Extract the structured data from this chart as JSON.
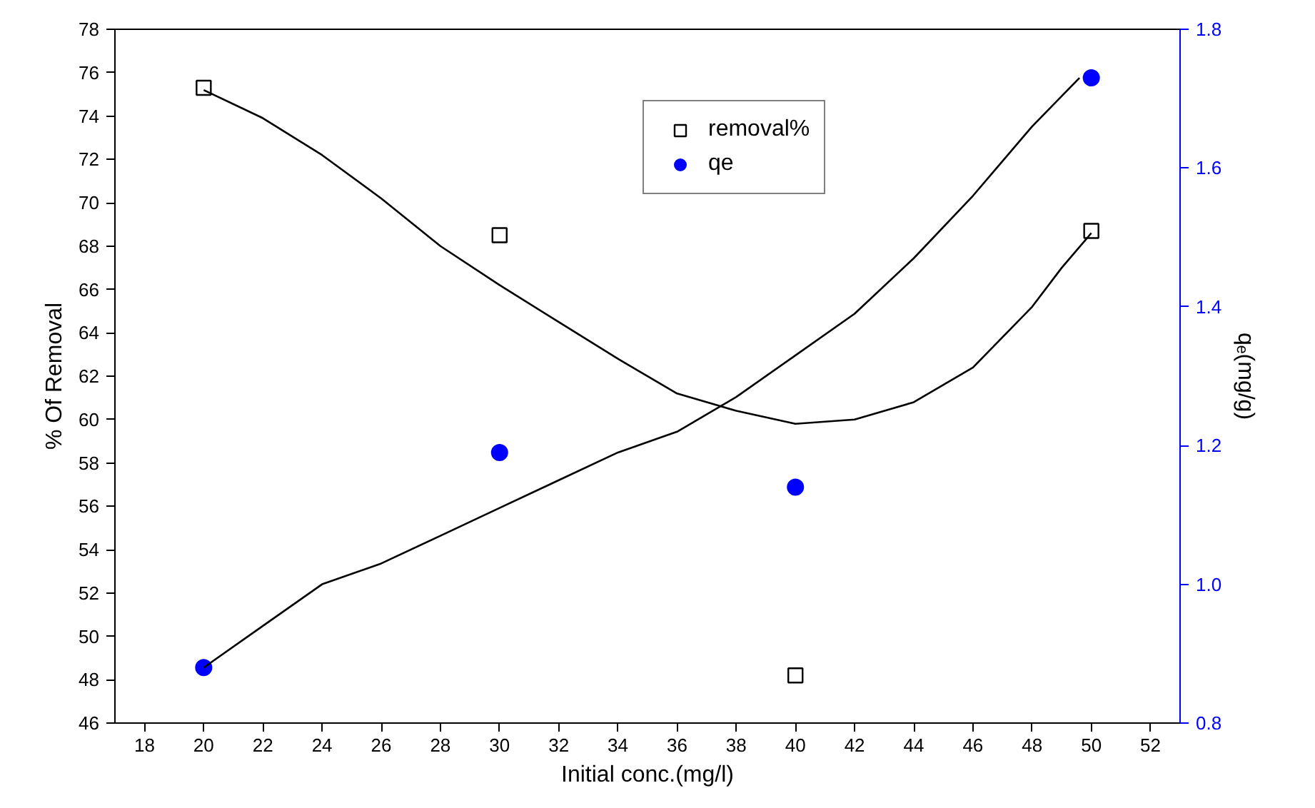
{
  "chart_data": {
    "type": "scatter",
    "xlabel": "Initial conc.(mg/l)",
    "ylabel": "% Of Removal",
    "y2label": "qₑ(mg/g)",
    "x": [
      20,
      30,
      40,
      50
    ],
    "series": [
      {
        "name": "removal%",
        "marker": "square",
        "color": "#000000",
        "values": [
          75.3,
          68.5,
          48.2,
          68.7
        ]
      },
      {
        "name": "qe",
        "marker": "circle",
        "color": "#0000ff",
        "axis": "y2",
        "values": [
          0.88,
          1.19,
          1.14,
          1.73
        ]
      },
      {
        "type": "line",
        "color": "#000000",
        "x": [
          20,
          22,
          24,
          26,
          28,
          30,
          32,
          34,
          36,
          38,
          40,
          42,
          44,
          46,
          48,
          49,
          50
        ],
        "values": [
          75.2,
          73.9,
          72.2,
          70.2,
          68.0,
          66.2,
          64.5,
          62.8,
          61.2,
          60.4,
          59.8,
          60.0,
          60.8,
          62.4,
          65.2,
          67.0,
          68.6
        ]
      },
      {
        "type": "line",
        "color": "#000000",
        "axis": "y2",
        "x": [
          20,
          22,
          24,
          26,
          28,
          30,
          32,
          34,
          36,
          38,
          40,
          42,
          44,
          46,
          48,
          49.6
        ],
        "values": [
          0.88,
          0.94,
          1.0,
          1.03,
          1.07,
          1.11,
          1.15,
          1.19,
          1.22,
          1.27,
          1.33,
          1.39,
          1.47,
          1.56,
          1.66,
          1.73
        ]
      }
    ],
    "xlim": [
      17,
      53
    ],
    "xticks": [
      18,
      20,
      22,
      24,
      26,
      28,
      30,
      32,
      34,
      36,
      38,
      40,
      42,
      44,
      46,
      48,
      50,
      52
    ],
    "ylim": [
      46,
      78
    ],
    "yticks": [
      46,
      48,
      50,
      52,
      54,
      56,
      58,
      60,
      62,
      64,
      66,
      68,
      70,
      72,
      74,
      76,
      78
    ],
    "y2lim": [
      0.8,
      1.8
    ],
    "y2ticks": [
      {
        "value": 0.8,
        "label": "0.8"
      },
      {
        "value": 1.0,
        "label": "1.0"
      },
      {
        "value": 1.2,
        "label": "1.2"
      },
      {
        "value": 1.4,
        "label": "1.4"
      },
      {
        "value": 1.6,
        "label": "1.6"
      },
      {
        "value": 1.8,
        "label": "1.8"
      }
    ],
    "legend": "top right",
    "grid": false
  }
}
